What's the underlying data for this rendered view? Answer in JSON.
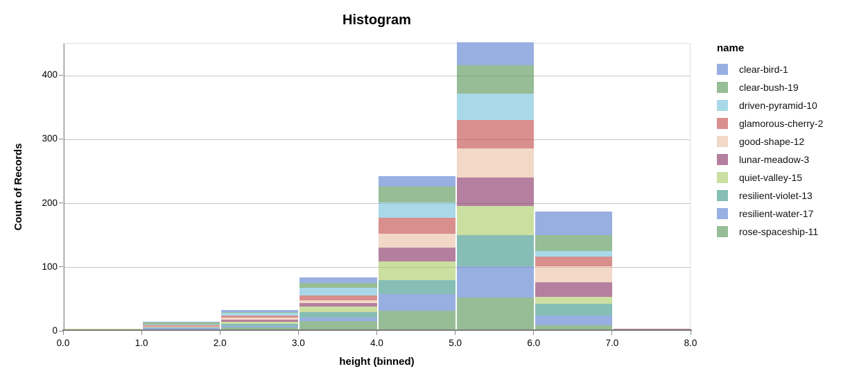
{
  "chart_data": {
    "type": "bar",
    "subtype": "stacked-histogram",
    "title": "Histogram",
    "xlabel": "height (binned)",
    "ylabel": "Count of Records",
    "xlim": [
      0,
      8
    ],
    "ylim": [
      0,
      450
    ],
    "grid": true,
    "legend_position": "right",
    "legend_title": "name",
    "x_tick_labels": [
      "0.0",
      "1.0",
      "2.0",
      "3.0",
      "4.0",
      "5.0",
      "6.0",
      "7.0",
      "8.0"
    ],
    "y_tick_labels": [
      "0",
      "100",
      "200",
      "300",
      "400"
    ],
    "y_tick_values": [
      0,
      100,
      200,
      300,
      400
    ],
    "bin_edges": [
      0,
      1,
      2,
      3,
      4,
      5,
      6,
      7,
      8
    ],
    "bin_labels": [
      "0-1",
      "1-2",
      "2-3",
      "3-4",
      "4-5",
      "5-6",
      "6-7",
      "7-8"
    ],
    "bin_totals": [
      2,
      13,
      32,
      82,
      241,
      450,
      185,
      2
    ],
    "stack_order_note": "first series renders at top of each stack",
    "series": [
      {
        "name": "clear-bird-1",
        "color": "#98afe2",
        "values": [
          0,
          1,
          4,
          8,
          17,
          36,
          36,
          0
        ]
      },
      {
        "name": "clear-bush-19",
        "color": "#96bd95",
        "values": [
          0,
          3,
          1,
          8,
          24,
          44,
          25,
          0
        ]
      },
      {
        "name": "driven-pyramid-10",
        "color": "#a9d9e8",
        "values": [
          0,
          1,
          4,
          12,
          24,
          41,
          9,
          0
        ]
      },
      {
        "name": "glamorous-cherry-2",
        "color": "#d98f8d",
        "values": [
          0,
          3,
          4,
          7,
          25,
          45,
          15,
          0
        ]
      },
      {
        "name": "good-shape-12",
        "color": "#f1d8c7",
        "values": [
          0,
          1,
          3,
          5,
          22,
          46,
          25,
          0
        ]
      },
      {
        "name": "lunar-meadow-3",
        "color": "#b5809f",
        "values": [
          0,
          0,
          3,
          5,
          22,
          44,
          23,
          1
        ]
      },
      {
        "name": "quiet-valley-15",
        "color": "#cbdfa1",
        "values": [
          2,
          0,
          3,
          9,
          29,
          46,
          11,
          0
        ]
      },
      {
        "name": "resilient-violet-13",
        "color": "#86beb6",
        "values": [
          0,
          1,
          3,
          8,
          22,
          48,
          18,
          0
        ]
      },
      {
        "name": "resilient-water-17",
        "color": "#98afe2",
        "values": [
          0,
          3,
          3,
          6,
          26,
          49,
          16,
          1
        ]
      },
      {
        "name": "rose-spaceship-11",
        "color": "#96bd95",
        "values": [
          0,
          0,
          4,
          14,
          30,
          51,
          7,
          0
        ]
      }
    ]
  },
  "style_colors": {
    "gridline": "#dddddd",
    "axis_domain": "#888888",
    "baseline": "#7d7d7d",
    "label": "#000000",
    "background": "#ffffff"
  }
}
